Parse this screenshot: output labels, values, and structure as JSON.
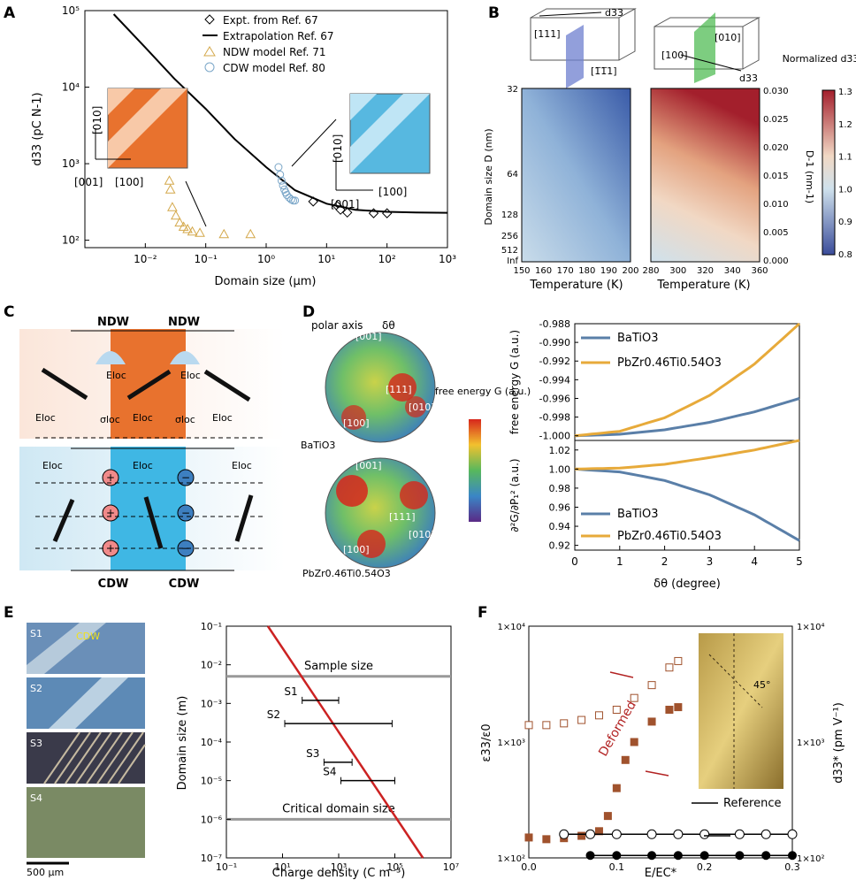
{
  "panels": {
    "A": "A",
    "B": "B",
    "C": "C",
    "D": "D",
    "E": "E",
    "F": "F"
  },
  "chart_data": [
    {
      "panel": "A",
      "type": "scatter",
      "xlabel": "Domain size (μm)",
      "ylabel": "d33 (pC N-1)",
      "xscale": "log",
      "yscale": "log",
      "xlim": [
        0.001,
        1000
      ],
      "ylim": [
        80,
        100000
      ],
      "xticks": [
        "10⁻²",
        "10⁻¹",
        "10⁰",
        "10¹",
        "10²",
        "10³"
      ],
      "yticks": [
        "10²",
        "10³",
        "10⁴",
        "10⁵"
      ],
      "legend": [
        "Expt. from Ref. 67",
        "Extrapolation Ref. 67",
        "NDW model Ref. 71",
        "CDW model Ref. 80"
      ],
      "series": [
        {
          "name": "Expt. from Ref. 67",
          "marker": "diamond",
          "color": "#000000",
          "x": [
            6,
            15,
            17,
            22,
            60,
            100
          ],
          "y": [
            320,
            280,
            250,
            230,
            225,
            225
          ]
        },
        {
          "name": "Extrapolation Ref. 67",
          "marker": "line",
          "color": "#000000",
          "x": [
            0.003,
            0.01,
            0.03,
            0.1,
            0.3,
            1,
            3,
            10,
            30,
            100,
            300,
            1000
          ],
          "y": [
            90000,
            33000,
            13000,
            5200,
            2100,
            900,
            450,
            300,
            250,
            235,
            230,
            228
          ]
        },
        {
          "name": "NDW model Ref. 71",
          "marker": "triangle",
          "color": "#d4a84b",
          "x": [
            0.025,
            0.026,
            0.028,
            0.032,
            0.037,
            0.043,
            0.05,
            0.06,
            0.08,
            0.2,
            0.55
          ],
          "y": [
            600,
            460,
            270,
            210,
            170,
            150,
            140,
            130,
            125,
            120,
            120
          ]
        },
        {
          "name": "CDW model Ref. 80",
          "marker": "circle",
          "color": "#7aa6c8",
          "x": [
            1.6,
            1.7,
            1.8,
            1.9,
            2.0,
            2.1,
            2.2,
            2.4,
            2.6,
            2.8,
            3.0
          ],
          "y": [
            900,
            720,
            600,
            520,
            460,
            420,
            390,
            360,
            340,
            330,
            330
          ]
        }
      ],
      "inset_labels": {
        "a": "[010]",
        "b": "[001]",
        "c": "[100]"
      }
    },
    {
      "panel": "B-left",
      "type": "heatmap",
      "xlabel": "Temperature (K)",
      "ylabel": "Domain size D (nm)",
      "xticks": [
        "150",
        "160",
        "170",
        "180",
        "190",
        "200"
      ],
      "yticks": [
        "32",
        "64",
        "128",
        "256",
        "512",
        "Inf"
      ],
      "zlim": [
        0.8,
        1.3
      ],
      "crystal_labels": {
        "d33": "d33",
        "a": "[111]",
        "b": "[1̅1̅1]"
      }
    },
    {
      "panel": "B-right",
      "type": "heatmap",
      "xlabel": "Temperature (K)",
      "ylabel": "D-1 (nm-1)",
      "xticks": [
        "280",
        "300",
        "320",
        "340",
        "360"
      ],
      "yticks": [
        "0.000",
        "0.005",
        "0.010",
        "0.015",
        "0.020",
        "0.025",
        "0.030"
      ],
      "colorbar_title": "Normalized d33",
      "colorbar_ticks": [
        "1.3",
        "1.2",
        "1.1",
        "1.0",
        "0.9",
        "0.8"
      ],
      "crystal_labels": {
        "a": "[010]",
        "b": "[100]",
        "d33": "d33"
      }
    },
    {
      "panel": "D-top",
      "type": "line",
      "xlabel": "",
      "ylabel": "free energy G (a.u.)",
      "xlim": [
        0,
        5
      ],
      "ylim": [
        -1.0005,
        -0.988
      ],
      "yticks": [
        "-0.988",
        "-0.990",
        "-0.992",
        "-0.994",
        "-0.996",
        "-0.998",
        "-1.000"
      ],
      "series": [
        {
          "name": "BaTiO3",
          "color": "#5a7fa8",
          "x": [
            0,
            1,
            2,
            3,
            4,
            5
          ],
          "y": [
            -1.0,
            -0.99984,
            -0.99936,
            -0.99856,
            -0.99744,
            -0.996
          ]
        },
        {
          "name": "PbZr0.46Ti0.54O3",
          "color": "#e7aa3a",
          "x": [
            0,
            1,
            2,
            3,
            4,
            5
          ],
          "y": [
            -1.0,
            -0.99952,
            -0.99808,
            -0.99568,
            -0.99232,
            -0.988
          ]
        }
      ]
    },
    {
      "panel": "D-bottom",
      "type": "line",
      "xlabel": "δθ (degree)",
      "ylabel": "∂²G/∂P₁² (a.u.)",
      "xlim": [
        0,
        5
      ],
      "ylim": [
        0.915,
        1.03
      ],
      "xticks": [
        "0",
        "1",
        "2",
        "3",
        "4",
        "5"
      ],
      "yticks": [
        "1.02",
        "1.00",
        "0.98",
        "0.96",
        "0.94",
        "0.92"
      ],
      "series": [
        {
          "name": "BaTiO3",
          "color": "#5a7fa8",
          "x": [
            0,
            1,
            2,
            3,
            4,
            5
          ],
          "y": [
            1.0,
            0.997,
            0.988,
            0.973,
            0.952,
            0.925
          ]
        },
        {
          "name": "PbZr0.46Ti0.54O3",
          "color": "#e7aa3a",
          "x": [
            0,
            1,
            2,
            3,
            4,
            5
          ],
          "y": [
            1.0,
            1.001,
            1.005,
            1.012,
            1.02,
            1.03
          ]
        }
      ]
    },
    {
      "panel": "E",
      "type": "line",
      "xlabel": "Charge density (C m⁻³)",
      "ylabel": "Domain size (m)",
      "xscale": "log",
      "yscale": "log",
      "xlim": [
        0.1,
        10000000
      ],
      "ylim": [
        1e-07,
        0.1
      ],
      "xticks": [
        "10⁻¹",
        "10¹",
        "10³",
        "10⁵",
        "10⁷"
      ],
      "yticks": [
        "10⁻¹",
        "10⁻²",
        "10⁻³",
        "10⁻⁴",
        "10⁻⁵",
        "10⁻⁶",
        "10⁻⁷"
      ],
      "hlines": [
        {
          "label": "Sample size",
          "y": 0.005
        },
        {
          "label": "Critical domain size",
          "y": 1e-06
        }
      ],
      "line": {
        "x": [
          3,
          1000000
        ],
        "y": [
          0.1,
          1e-07
        ],
        "color": "#cc2222"
      },
      "errorbars": [
        {
          "label": "S1",
          "y": 0.0012,
          "xmin": 50,
          "xmax": 1000
        },
        {
          "label": "S2",
          "y": 0.0003,
          "xmin": 12,
          "xmax": 80000
        },
        {
          "label": "S3",
          "y": 3e-05,
          "xmin": 300,
          "xmax": 3000
        },
        {
          "label": "S4",
          "y": 1e-05,
          "xmin": 1200,
          "xmax": 100000
        }
      ]
    },
    {
      "panel": "F",
      "type": "scatter",
      "xlabel": "E/EC*",
      "ylabel": "ε33/ε0",
      "y2label": "d33* (pm V⁻¹)",
      "xlim": [
        0,
        0.3
      ],
      "xticks": [
        "0.0",
        "0.1",
        "0.2",
        "0.3"
      ],
      "yticks": [
        "1×10⁴",
        "1×10³",
        "1×10²"
      ],
      "y2ticks": [
        "1×10⁴",
        "1×10³",
        "1×10²"
      ],
      "series": [
        {
          "name": "Deformed ε",
          "marker": "open-square",
          "color": "#a0522d",
          "x": [
            0.0,
            0.02,
            0.04,
            0.06,
            0.08,
            0.1,
            0.12,
            0.14,
            0.16,
            0.17
          ],
          "y": [
            1400,
            1400,
            1450,
            1550,
            1700,
            1900,
            2400,
            3100,
            4400,
            5000
          ]
        },
        {
          "name": "Deformed d33",
          "marker": "filled-square",
          "color": "#a0522d",
          "x": [
            0.0,
            0.02,
            0.04,
            0.06,
            0.08,
            0.09,
            0.1,
            0.11,
            0.12,
            0.14,
            0.16,
            0.17
          ],
          "y": [
            150,
            145,
            148,
            155,
            170,
            230,
            400,
            700,
            1000,
            1500,
            1900,
            2000
          ]
        },
        {
          "name": "Reference ε",
          "marker": "open-circle",
          "color": "#000000",
          "x": [
            0.04,
            0.07,
            0.1,
            0.14,
            0.17,
            0.2,
            0.24,
            0.27,
            0.3
          ],
          "y": [
            160,
            160,
            160,
            160,
            160,
            160,
            160,
            160,
            160
          ]
        },
        {
          "name": "Reference d33",
          "marker": "filled-circle",
          "color": "#000000",
          "x": [
            0.07,
            0.1,
            0.14,
            0.17,
            0.2,
            0.24,
            0.27,
            0.3
          ],
          "y": [
            105,
            105,
            105,
            105,
            105,
            105,
            105,
            105
          ]
        }
      ],
      "annotations": {
        "deformed": "Deformed",
        "reference": "Reference",
        "angle": "45°"
      }
    }
  ],
  "labels": {
    "A_inset_010_1": "[010]",
    "A_inset_001_1": "[001]",
    "A_inset_100_1": "[100]",
    "A_inset_010_2": "[010]",
    "A_inset_001_2": "[001]",
    "A_inset_100_2": "[100]",
    "C_ndw1": "NDW",
    "C_ndw2": "NDW",
    "C_cdw1": "CDW",
    "C_cdw2": "CDW",
    "C_eloc": "Eloc",
    "C_sigma": "σloc",
    "D_polar": "polar axis",
    "D_dtheta": "δθ",
    "D_001": "[001]",
    "D_111": "[111]",
    "D_010": "[010]",
    "D_100": "[100]",
    "D_bt": "BaTiO3",
    "D_pzt": "PbZr0.46Ti0.54O3",
    "D_cb_title": "free energy G (a.u.)",
    "E_s1": "S1",
    "E_s2": "S2",
    "E_s3": "S3",
    "E_s4": "S4",
    "E_cdw": "CDW",
    "E_scale": "500 μm"
  }
}
